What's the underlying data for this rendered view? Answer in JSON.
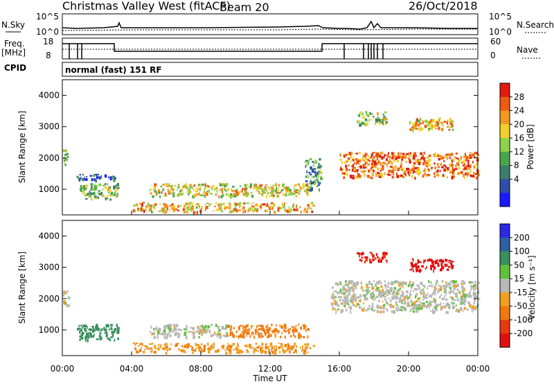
{
  "header": {
    "station": "Christmas Valley West (fitACF)",
    "beam": "Beam 20",
    "date": "26/Oct/2018"
  },
  "strip_labels": {
    "nsky": "N.Sky",
    "nsky_ticks": [
      "10^5",
      "10^0"
    ],
    "nsearch": "N.Search",
    "nsearch_ticks": [
      "10^5",
      "10^0"
    ],
    "freq": "Freq.",
    "freq_unit": "[MHz]",
    "freq_ticks": [
      "18",
      "8"
    ],
    "nave": "Nave",
    "nave_ticks": [
      "60",
      "0"
    ],
    "cpid": "CPID",
    "cpid_value": "normal (fast) 151 RF"
  },
  "panels": {
    "ylabel": "Slant Range [km]",
    "yticks": [
      "1000",
      "2000",
      "3000",
      "4000"
    ],
    "xlabel": "Time UT",
    "xticks": [
      "00:00",
      "04:00",
      "08:00",
      "12:00",
      "16:00",
      "20:00",
      "00:00"
    ]
  },
  "colorbars": {
    "power": {
      "label": "Power [dB]",
      "ticks": [
        "4",
        "8",
        "12",
        "16",
        "20",
        "24",
        "28"
      ],
      "colors": [
        "#1a1aff",
        "#2e4ea8",
        "#3c7e6a",
        "#4aa64a",
        "#8ed24a",
        "#f2d02a",
        "#f29a1e",
        "#ee5a10",
        "#e01a10"
      ]
    },
    "velocity": {
      "label": "Velocity [m s⁻¹]",
      "ticks": [
        "200",
        "100",
        "50",
        "15",
        "-15",
        "-50",
        "-100",
        "-200"
      ],
      "colors": [
        "#2a2ae6",
        "#2e5fa0",
        "#3a8f5c",
        "#5fc03c",
        "#b8b8b8",
        "#f0a020",
        "#f07a10",
        "#e83a10",
        "#e01010"
      ]
    }
  },
  "chart_data": [
    {
      "type": "heatmap",
      "title": "Power [dB]",
      "xlabel": "Time UT",
      "ylabel": "Slant Range [km]",
      "xlim": [
        "00:00",
        "24:00"
      ],
      "ylim": [
        180,
        4500
      ],
      "colorbar_range": [
        0,
        30
      ],
      "features": [
        {
          "t_start": 0.0,
          "t_end": 0.3,
          "range_min": 1800,
          "range_max": 2300,
          "power": 16
        },
        {
          "t_start": 0.8,
          "t_end": 3.0,
          "range_min": 1300,
          "range_max": 1500,
          "power": 6
        },
        {
          "t_start": 1.0,
          "t_end": 3.2,
          "range_min": 700,
          "range_max": 1200,
          "power": 14
        },
        {
          "t_start": 5.0,
          "t_end": 14.2,
          "range_min": 800,
          "range_max": 1200,
          "power": 18
        },
        {
          "t_start": 4.0,
          "t_end": 14.5,
          "range_min": 300,
          "range_max": 600,
          "power": 20
        },
        {
          "t_start": 14.0,
          "t_end": 14.9,
          "range_min": 1000,
          "range_max": 2000,
          "power": 10
        },
        {
          "t_start": 16.0,
          "t_end": 24.0,
          "range_min": 1400,
          "range_max": 2200,
          "power": 24
        },
        {
          "t_start": 17.0,
          "t_end": 18.7,
          "range_min": 3100,
          "range_max": 3500,
          "power": 14
        },
        {
          "t_start": 20.0,
          "t_end": 22.5,
          "range_min": 2900,
          "range_max": 3300,
          "power": 20
        }
      ]
    },
    {
      "type": "heatmap",
      "title": "Velocity [m s⁻¹]",
      "xlabel": "Time UT",
      "ylabel": "Slant Range [km]",
      "xlim": [
        "00:00",
        "24:00"
      ],
      "ylim": [
        180,
        4500
      ],
      "colorbar_range": [
        -250,
        250
      ],
      "features": [
        {
          "t_start": 0.0,
          "t_end": 0.4,
          "range_min": 1800,
          "range_max": 2300,
          "velocity": 0
        },
        {
          "t_start": 0.8,
          "t_end": 3.2,
          "range_min": 700,
          "range_max": 1200,
          "velocity": 50
        },
        {
          "t_start": 5.0,
          "t_end": 9.5,
          "range_min": 800,
          "range_max": 1200,
          "velocity": 0
        },
        {
          "t_start": 9.5,
          "t_end": 14.2,
          "range_min": 800,
          "range_max": 1200,
          "velocity": -40
        },
        {
          "t_start": 4.0,
          "t_end": 14.5,
          "range_min": 300,
          "range_max": 600,
          "velocity": -30
        },
        {
          "t_start": 15.5,
          "t_end": 24.0,
          "range_min": 1600,
          "range_max": 2600,
          "velocity": 0
        },
        {
          "t_start": 17.0,
          "t_end": 18.7,
          "range_min": 3200,
          "range_max": 3500,
          "velocity": -150
        },
        {
          "t_start": 20.0,
          "t_end": 22.5,
          "range_min": 2900,
          "range_max": 3300,
          "velocity": -200
        }
      ]
    }
  ]
}
